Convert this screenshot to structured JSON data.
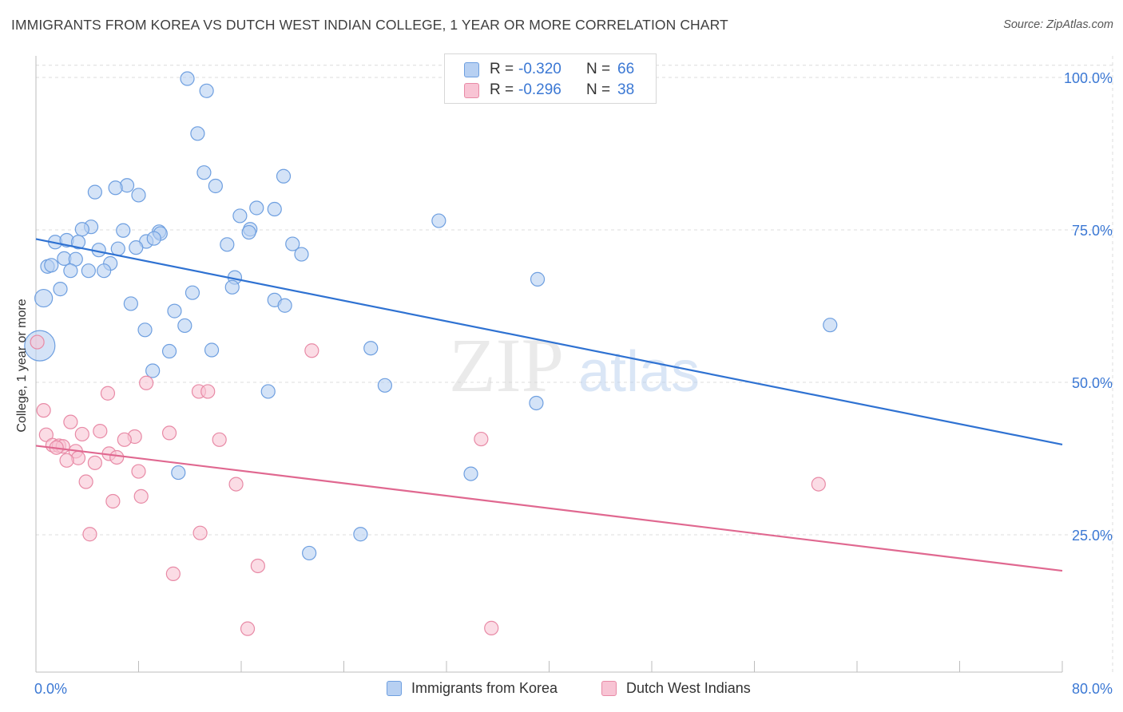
{
  "title": "IMMIGRANTS FROM KOREA VS DUTCH WEST INDIAN COLLEGE, 1 YEAR OR MORE CORRELATION CHART",
  "source": "Source: ZipAtlas.com",
  "watermark": {
    "zip": "ZIP",
    "atlas": "atlas"
  },
  "legend_top": [
    {
      "r_label": "R =",
      "r_value": "-0.320",
      "n_label": "N =",
      "n_value": "66"
    },
    {
      "r_label": "R =",
      "r_value": "-0.296",
      "n_label": "N =",
      "n_value": "38"
    }
  ],
  "legend_bottom": [
    {
      "label": "Immigrants from Korea"
    },
    {
      "label": "Dutch West Indians"
    }
  ],
  "colors": {
    "blue_fill": "#b7d0f2",
    "blue_stroke": "#6e9fe0",
    "blue_line": "#2f72d2",
    "pink_fill": "#f8c4d4",
    "pink_stroke": "#e88aa6",
    "pink_line": "#e06890",
    "tick_label": "#3b78d4",
    "grid": "#dcdcdc"
  },
  "chart_data": {
    "type": "scatter",
    "title": "IMMIGRANTS FROM KOREA VS DUTCH WEST INDIAN COLLEGE, 1 YEAR OR MORE CORRELATION CHART",
    "xlabel": "",
    "ylabel": "College, 1 year or more",
    "xlim": [
      0,
      80
    ],
    "ylim": [
      0,
      102
    ],
    "x_tick_labels": [
      "0.0%",
      "80.0%"
    ],
    "y_ticks": [
      25,
      50,
      75,
      100
    ],
    "y_tick_labels": [
      "25.0%",
      "50.0%",
      "75.0%",
      "100.0%"
    ],
    "grid": true,
    "series": [
      {
        "name": "Immigrants from Korea",
        "color": "blue",
        "trend": {
          "x": [
            0,
            80
          ],
          "y": [
            73.5,
            39.8
          ]
        },
        "points": [
          {
            "x": 11.8,
            "y": 99.8
          },
          {
            "x": 13.3,
            "y": 97.8
          },
          {
            "x": 12.6,
            "y": 90.8
          },
          {
            "x": 13.1,
            "y": 84.4
          },
          {
            "x": 19.3,
            "y": 83.8
          },
          {
            "x": 14.0,
            "y": 82.2
          },
          {
            "x": 7.1,
            "y": 82.3
          },
          {
            "x": 6.2,
            "y": 81.9
          },
          {
            "x": 4.6,
            "y": 81.2
          },
          {
            "x": 8.0,
            "y": 80.7
          },
          {
            "x": 17.2,
            "y": 78.6
          },
          {
            "x": 18.6,
            "y": 78.4
          },
          {
            "x": 15.9,
            "y": 77.3
          },
          {
            "x": 31.4,
            "y": 76.5
          },
          {
            "x": 4.3,
            "y": 75.5
          },
          {
            "x": 3.6,
            "y": 75.1
          },
          {
            "x": 6.8,
            "y": 74.9
          },
          {
            "x": 9.6,
            "y": 74.7
          },
          {
            "x": 9.7,
            "y": 74.4
          },
          {
            "x": 16.7,
            "y": 75.1
          },
          {
            "x": 16.6,
            "y": 74.6
          },
          {
            "x": 1.5,
            "y": 73.0
          },
          {
            "x": 2.4,
            "y": 73.3
          },
          {
            "x": 3.3,
            "y": 73.0
          },
          {
            "x": 8.6,
            "y": 73.1
          },
          {
            "x": 9.2,
            "y": 73.6
          },
          {
            "x": 7.8,
            "y": 72.1
          },
          {
            "x": 14.9,
            "y": 72.6
          },
          {
            "x": 20.0,
            "y": 72.7
          },
          {
            "x": 4.9,
            "y": 71.7
          },
          {
            "x": 6.4,
            "y": 71.9
          },
          {
            "x": 2.2,
            "y": 70.3
          },
          {
            "x": 3.1,
            "y": 70.2
          },
          {
            "x": 20.7,
            "y": 71.0
          },
          {
            "x": 0.9,
            "y": 69.0
          },
          {
            "x": 1.2,
            "y": 69.2
          },
          {
            "x": 5.8,
            "y": 69.5
          },
          {
            "x": 2.7,
            "y": 68.3
          },
          {
            "x": 4.1,
            "y": 68.3
          },
          {
            "x": 5.3,
            "y": 68.3
          },
          {
            "x": 15.5,
            "y": 67.2
          },
          {
            "x": 39.1,
            "y": 66.9
          },
          {
            "x": 1.9,
            "y": 65.3
          },
          {
            "x": 15.3,
            "y": 65.6
          },
          {
            "x": 12.2,
            "y": 64.7
          },
          {
            "x": 0.6,
            "y": 63.8
          },
          {
            "x": 18.6,
            "y": 63.5
          },
          {
            "x": 7.4,
            "y": 62.9
          },
          {
            "x": 19.4,
            "y": 62.6
          },
          {
            "x": 10.8,
            "y": 61.7
          },
          {
            "x": 11.6,
            "y": 59.3
          },
          {
            "x": 61.9,
            "y": 59.4
          },
          {
            "x": 8.5,
            "y": 58.6
          },
          {
            "x": 0.3,
            "y": 56.0
          },
          {
            "x": 26.1,
            "y": 55.6
          },
          {
            "x": 10.4,
            "y": 55.1
          },
          {
            "x": 13.7,
            "y": 55.3
          },
          {
            "x": 9.1,
            "y": 51.9
          },
          {
            "x": 27.2,
            "y": 49.5
          },
          {
            "x": 18.1,
            "y": 48.5
          },
          {
            "x": 39.0,
            "y": 46.6
          },
          {
            "x": 11.1,
            "y": 35.2
          },
          {
            "x": 33.9,
            "y": 35.0
          },
          {
            "x": 25.3,
            "y": 25.1
          },
          {
            "x": 21.3,
            "y": 22.0
          },
          {
            "x": 0.4,
            "y": 64.6
          }
        ]
      },
      {
        "name": "Dutch West Indians",
        "color": "pink",
        "trend": {
          "x": [
            0,
            80
          ],
          "y": [
            39.6,
            19.1
          ]
        },
        "points": [
          {
            "x": 0.1,
            "y": 56.6
          },
          {
            "x": 21.5,
            "y": 55.2
          },
          {
            "x": 8.6,
            "y": 49.9
          },
          {
            "x": 12.7,
            "y": 48.5
          },
          {
            "x": 13.4,
            "y": 48.5
          },
          {
            "x": 5.6,
            "y": 48.2
          },
          {
            "x": 0.6,
            "y": 45.4
          },
          {
            "x": 2.7,
            "y": 43.5
          },
          {
            "x": 5.0,
            "y": 42.0
          },
          {
            "x": 10.4,
            "y": 41.7
          },
          {
            "x": 3.6,
            "y": 41.5
          },
          {
            "x": 0.8,
            "y": 41.4
          },
          {
            "x": 7.7,
            "y": 41.1
          },
          {
            "x": 6.9,
            "y": 40.6
          },
          {
            "x": 14.3,
            "y": 40.6
          },
          {
            "x": 34.7,
            "y": 40.7
          },
          {
            "x": 1.3,
            "y": 39.7
          },
          {
            "x": 1.8,
            "y": 39.6
          },
          {
            "x": 2.1,
            "y": 39.5
          },
          {
            "x": 1.6,
            "y": 39.3
          },
          {
            "x": 3.1,
            "y": 38.7
          },
          {
            "x": 5.7,
            "y": 38.3
          },
          {
            "x": 6.3,
            "y": 37.7
          },
          {
            "x": 3.3,
            "y": 37.6
          },
          {
            "x": 2.4,
            "y": 37.2
          },
          {
            "x": 4.6,
            "y": 36.8
          },
          {
            "x": 8.0,
            "y": 35.4
          },
          {
            "x": 3.9,
            "y": 33.7
          },
          {
            "x": 15.6,
            "y": 33.3
          },
          {
            "x": 61.0,
            "y": 33.3
          },
          {
            "x": 8.2,
            "y": 31.3
          },
          {
            "x": 6.0,
            "y": 30.5
          },
          {
            "x": 4.2,
            "y": 25.1
          },
          {
            "x": 12.8,
            "y": 25.3
          },
          {
            "x": 17.3,
            "y": 19.9
          },
          {
            "x": 10.7,
            "y": 18.6
          },
          {
            "x": 16.5,
            "y": 9.6
          },
          {
            "x": 35.5,
            "y": 9.7
          }
        ]
      }
    ]
  }
}
